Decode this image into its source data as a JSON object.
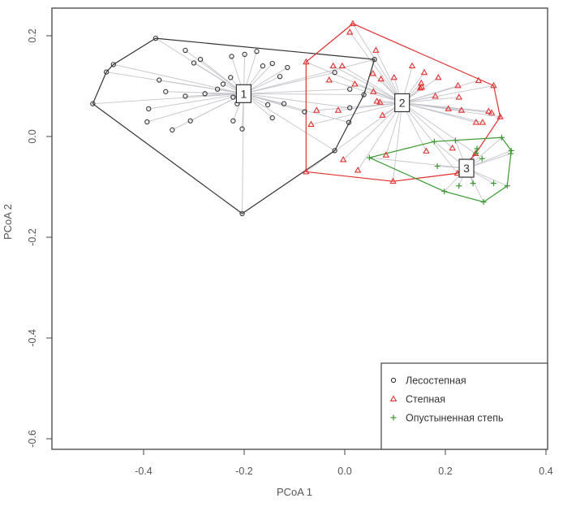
{
  "chart_data": {
    "type": "scatter",
    "title": "",
    "xlabel": "PCoA 1",
    "ylabel": "PCoA 2",
    "xlim": [
      -0.582,
      0.403
    ],
    "ylim": [
      -0.621,
      0.255
    ],
    "xticks": [
      -0.4,
      -0.2,
      0.0,
      0.2,
      0.4
    ],
    "xtick_labels": [
      "-0.4",
      "-0.2",
      "0.0",
      "0.2",
      "0.4"
    ],
    "yticks": [
      0.2,
      0.0,
      -0.2,
      -0.4,
      -0.6
    ],
    "ytick_labels": [
      "0.2",
      "0.0",
      "-0.2",
      "-0.4",
      "-0.6"
    ],
    "grid": false,
    "legend_position": "bottom-right",
    "series": [
      {
        "name": "Лесостепная",
        "group_label": "1",
        "marker": "circle",
        "color": "#333333",
        "centroid": [
          -0.201,
          0.085
        ],
        "points": [
          [
            -0.376,
            0.195
          ],
          [
            -0.317,
            0.171
          ],
          [
            -0.287,
            0.153
          ],
          [
            -0.3,
            0.146
          ],
          [
            -0.46,
            0.143
          ],
          [
            -0.474,
            0.128
          ],
          [
            -0.501,
            0.065
          ],
          [
            -0.369,
            0.112
          ],
          [
            -0.356,
            0.089
          ],
          [
            -0.317,
            0.08
          ],
          [
            -0.278,
            0.085
          ],
          [
            -0.253,
            0.094
          ],
          [
            -0.242,
            0.104
          ],
          [
            -0.227,
            0.117
          ],
          [
            -0.225,
            0.159
          ],
          [
            -0.199,
            0.163
          ],
          [
            -0.175,
            0.169
          ],
          [
            -0.163,
            0.14
          ],
          [
            -0.144,
            0.145
          ],
          [
            -0.114,
            0.137
          ],
          [
            -0.129,
            0.119
          ],
          [
            -0.222,
            0.078
          ],
          [
            -0.214,
            0.065
          ],
          [
            -0.153,
            0.063
          ],
          [
            -0.121,
            0.065
          ],
          [
            -0.144,
            0.037
          ],
          [
            -0.222,
            0.031
          ],
          [
            -0.204,
            0.015
          ],
          [
            -0.39,
            0.055
          ],
          [
            -0.393,
            0.029
          ],
          [
            -0.343,
            0.013
          ],
          [
            -0.307,
            0.031
          ],
          [
            -0.08,
            0.049
          ],
          [
            -0.02,
            0.127
          ],
          [
            0.01,
            0.094
          ],
          [
            0.038,
            0.083
          ],
          [
            0.01,
            0.057
          ],
          [
            0.008,
            0.028
          ],
          [
            0.059,
            0.153
          ],
          [
            -0.02,
            -0.028
          ],
          [
            -0.204,
            -0.153
          ]
        ]
      },
      {
        "name": "Степная",
        "group_label": "2",
        "marker": "triangle",
        "color": "#e03030",
        "centroid": [
          0.114,
          0.067
        ],
        "points": [
          [
            0.016,
            0.224
          ],
          [
            0.01,
            0.207
          ],
          [
            0.062,
            0.171
          ],
          [
            -0.077,
            0.148
          ],
          [
            -0.023,
            0.14
          ],
          [
            -0.005,
            0.14
          ],
          [
            0.056,
            0.125
          ],
          [
            0.072,
            0.114
          ],
          [
            0.098,
            0.117
          ],
          [
            0.134,
            0.14
          ],
          [
            0.158,
            0.127
          ],
          [
            0.186,
            0.117
          ],
          [
            0.152,
            0.106
          ],
          [
            0.153,
            0.098
          ],
          [
            0.15,
            0.096
          ],
          [
            -0.031,
            0.112
          ],
          [
            0.02,
            0.104
          ],
          [
            0.057,
            0.089
          ],
          [
            0.064,
            0.07
          ],
          [
            0.07,
            0.068
          ],
          [
            -0.056,
            0.052
          ],
          [
            -0.013,
            0.052
          ],
          [
            -0.067,
            0.024
          ],
          [
            0.075,
            0.042
          ],
          [
            0.18,
            0.08
          ],
          [
            0.225,
            0.101
          ],
          [
            0.227,
            0.078
          ],
          [
            0.266,
            0.111
          ],
          [
            0.296,
            0.101
          ],
          [
            0.206,
            0.055
          ],
          [
            0.232,
            0.052
          ],
          [
            0.286,
            0.05
          ],
          [
            0.292,
            0.047
          ],
          [
            0.309,
            0.039
          ],
          [
            0.261,
            0.028
          ],
          [
            0.274,
            0.028
          ],
          [
            0.162,
            -0.029
          ],
          [
            0.214,
            -0.023
          ],
          [
            0.082,
            -0.037
          ],
          [
            -0.003,
            -0.046
          ],
          [
            0.026,
            -0.067
          ],
          [
            -0.077,
            -0.07
          ],
          [
            0.096,
            -0.089
          ],
          [
            0.224,
            -0.073
          ],
          [
            0.26,
            -0.034
          ]
        ]
      },
      {
        "name": "Опустыненная степь",
        "group_label": "3",
        "marker": "plus",
        "color": "#3a9a30",
        "centroid": [
          0.242,
          -0.063
        ],
        "points": [
          [
            0.049,
            -0.042
          ],
          [
            0.178,
            -0.01
          ],
          [
            0.22,
            -0.008
          ],
          [
            0.312,
            -0.002
          ],
          [
            0.331,
            -0.028
          ],
          [
            0.33,
            -0.034
          ],
          [
            0.273,
            -0.044
          ],
          [
            0.261,
            -0.033
          ],
          [
            0.184,
            -0.059
          ],
          [
            0.323,
            -0.098
          ],
          [
            0.296,
            -0.093
          ],
          [
            0.255,
            -0.093
          ],
          [
            0.227,
            -0.098
          ],
          [
            0.198,
            -0.109
          ],
          [
            0.276,
            -0.13
          ],
          [
            0.263,
            -0.024
          ]
        ]
      }
    ]
  }
}
